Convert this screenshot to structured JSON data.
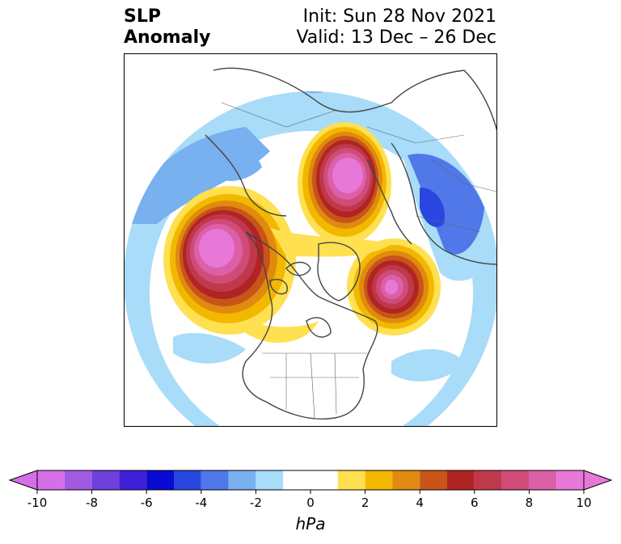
{
  "title": {
    "left_line1": "SLP",
    "left_line2": "Anomaly",
    "right_line1": "Init: Sun 28 Nov 2021",
    "right_line2": "Valid: 13 Dec – 26 Dec"
  },
  "colorbar": {
    "unit": "hPa",
    "ticks": [
      "-10",
      "-8",
      "-6",
      "-4",
      "-2",
      "0",
      "2",
      "4",
      "6",
      "8",
      "10"
    ],
    "bins": [
      {
        "range": [
          -10,
          -9
        ],
        "color": "#d66ee8"
      },
      {
        "range": [
          -9,
          -8
        ],
        "color": "#a35ae2"
      },
      {
        "range": [
          -8,
          -7
        ],
        "color": "#7040dc"
      },
      {
        "range": [
          -7,
          -6
        ],
        "color": "#4020d8"
      },
      {
        "range": [
          -6,
          -5
        ],
        "color": "#0a0ad0"
      },
      {
        "range": [
          -5,
          -4
        ],
        "color": "#2a46e0"
      },
      {
        "range": [
          -4,
          -3
        ],
        "color": "#5078e8"
      },
      {
        "range": [
          -3,
          -2
        ],
        "color": "#78b0f0"
      },
      {
        "range": [
          -2,
          -1
        ],
        "color": "#a8dcf8"
      },
      {
        "range": [
          -1,
          1
        ],
        "color": "#ffffff"
      },
      {
        "range": [
          1,
          2
        ],
        "color": "#ffe050"
      },
      {
        "range": [
          2,
          3
        ],
        "color": "#f2b800"
      },
      {
        "range": [
          3,
          4
        ],
        "color": "#e08a10"
      },
      {
        "range": [
          4,
          5
        ],
        "color": "#c85418"
      },
      {
        "range": [
          5,
          6
        ],
        "color": "#b02424"
      },
      {
        "range": [
          6,
          7
        ],
        "color": "#c0384c"
      },
      {
        "range": [
          7,
          8
        ],
        "color": "#d04c78"
      },
      {
        "range": [
          8,
          9
        ],
        "color": "#dc60a8"
      },
      {
        "range": [
          9,
          10
        ],
        "color": "#e878d8"
      }
    ],
    "extend": "both"
  },
  "map": {
    "projection": "north-polar-stereographic",
    "region": "Northern Hemisphere centered on North America",
    "anomaly_features": [
      {
        "kind": "positive",
        "location": "Gulf of Alaska / NE Pacific",
        "peak_hpa": 10
      },
      {
        "kind": "positive",
        "location": "Scandinavia / northern Europe",
        "peak_hpa": 10
      },
      {
        "kind": "positive",
        "location": "Greenland / North Atlantic",
        "peak_hpa": 9
      },
      {
        "kind": "negative",
        "location": "Western Europe / North Atlantic",
        "peak_hpa": -6
      },
      {
        "kind": "negative",
        "location": "Siberia / East Asia",
        "peak_hpa": -3
      },
      {
        "kind": "negative",
        "location": "Subtropical Pacific",
        "peak_hpa": -2
      }
    ]
  }
}
